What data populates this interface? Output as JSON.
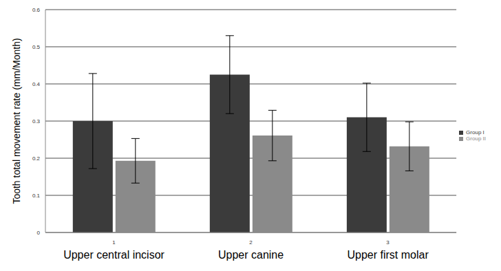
{
  "chart_data": {
    "type": "bar",
    "y_label": "Tooth total movement rate (mm/Month)",
    "categories": [
      "Upper central incisor",
      "Upper canine",
      "Upper first molar"
    ],
    "xticks": [
      1,
      2,
      3
    ],
    "series": [
      {
        "name": "Group I",
        "color": "#3b3b3b",
        "values": [
          0.3,
          0.425,
          0.31
        ],
        "errors": [
          0.128,
          0.105,
          0.092
        ]
      },
      {
        "name": "Group II",
        "color": "#8a8a8a",
        "values": [
          0.193,
          0.261,
          0.232
        ],
        "errors": [
          0.06,
          0.068,
          0.066
        ]
      }
    ],
    "ylim": [
      0,
      0.6
    ],
    "yticks": [
      0,
      0.1,
      0.2,
      0.3,
      0.4,
      0.5,
      0.6
    ],
    "grid": true,
    "legend": "right"
  }
}
